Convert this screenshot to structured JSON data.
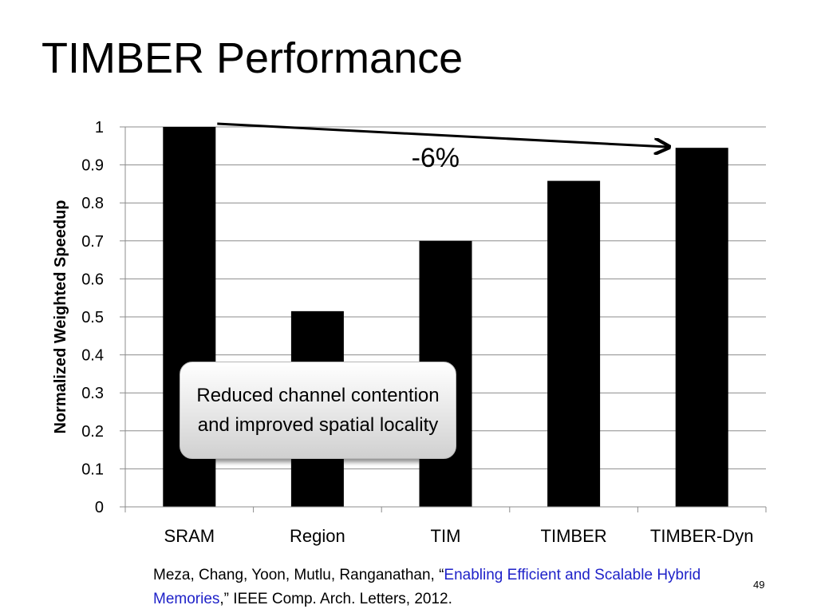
{
  "slide": {
    "title": "TIMBER Performance",
    "page_number": "49"
  },
  "callout": {
    "text": "Reduced channel contention and improved spatial locality"
  },
  "citation": {
    "prefix": "Meza, Chang, Yoon, Mutlu, Ranganathan, “",
    "link_text": "Enabling Efficient and Scalable Hybrid Memories",
    "suffix": ",” IEEE Comp. Arch. Letters, 2012."
  },
  "annotation": {
    "label": "-6%",
    "from_category": "SRAM",
    "to_category": "TIMBER-Dyn"
  },
  "colors": {
    "bar": "#000000",
    "grid": "#8c8c8c",
    "link": "#1f22c9"
  },
  "chart_data": {
    "type": "bar",
    "title": "",
    "xlabel": "",
    "ylabel": "Normalized Weighted Speedup",
    "categories": [
      "SRAM",
      "Region",
      "TIM",
      "TIMBER",
      "TIMBER-Dyn"
    ],
    "values": [
      1.0,
      0.515,
      0.7,
      0.858,
      0.945
    ],
    "ylim": [
      0,
      1
    ],
    "yticks": [
      "0",
      "0.1",
      "0.2",
      "0.3",
      "0.4",
      "0.5",
      "0.6",
      "0.7",
      "0.8",
      "0.9",
      "1"
    ],
    "grid": true,
    "legend": "none"
  }
}
